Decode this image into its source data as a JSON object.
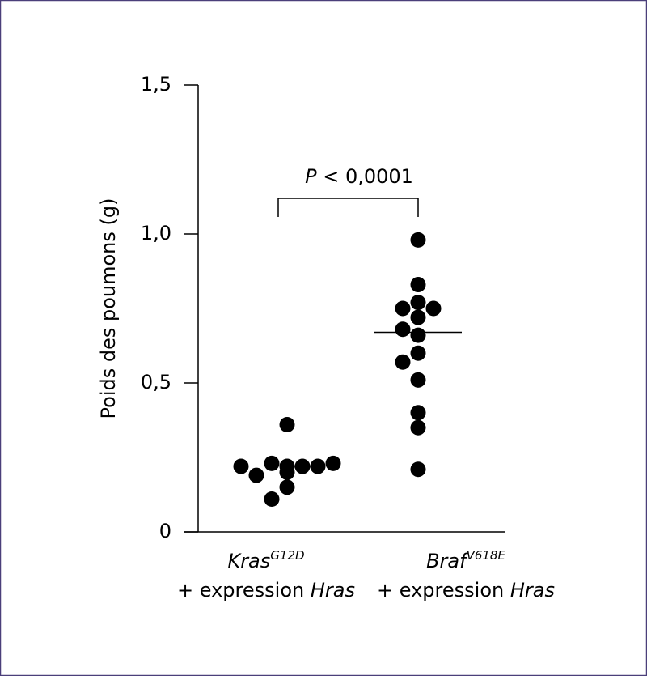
{
  "chart_data": {
    "type": "strip",
    "y_label": "Poids des poumons (g)",
    "ylim": [
      0,
      1.5
    ],
    "yticks": [
      0,
      {
        "value": 0.5,
        "label": "0,5"
      },
      {
        "value": 1.0,
        "label": "1,0"
      },
      {
        "value": 1.5,
        "label": "1,5"
      }
    ],
    "categories": [
      {
        "gene": "Kras",
        "allele": "G12D",
        "detail": "+ expression",
        "detail_gene": "Hras"
      },
      {
        "gene": "Braf",
        "allele": "V618E",
        "detail": "+ expression",
        "detail_gene": "Hras"
      }
    ],
    "series": [
      {
        "color": "#000000",
        "values": [
          0.2,
          0.23,
          0.22,
          0.19,
          0.36,
          0.15,
          0.22,
          0.22,
          0.23,
          0.22,
          0.11
        ]
      },
      {
        "color": "#000000",
        "values": [
          0.98,
          0.83,
          0.77,
          0.75,
          0.75,
          0.72,
          0.66,
          0.68,
          0.6,
          0.57,
          0.51,
          0.4,
          0.35,
          0.21
        ],
        "median": 0.67
      }
    ],
    "annotation": {
      "italic": "P",
      "text": "< 0,0001"
    }
  }
}
